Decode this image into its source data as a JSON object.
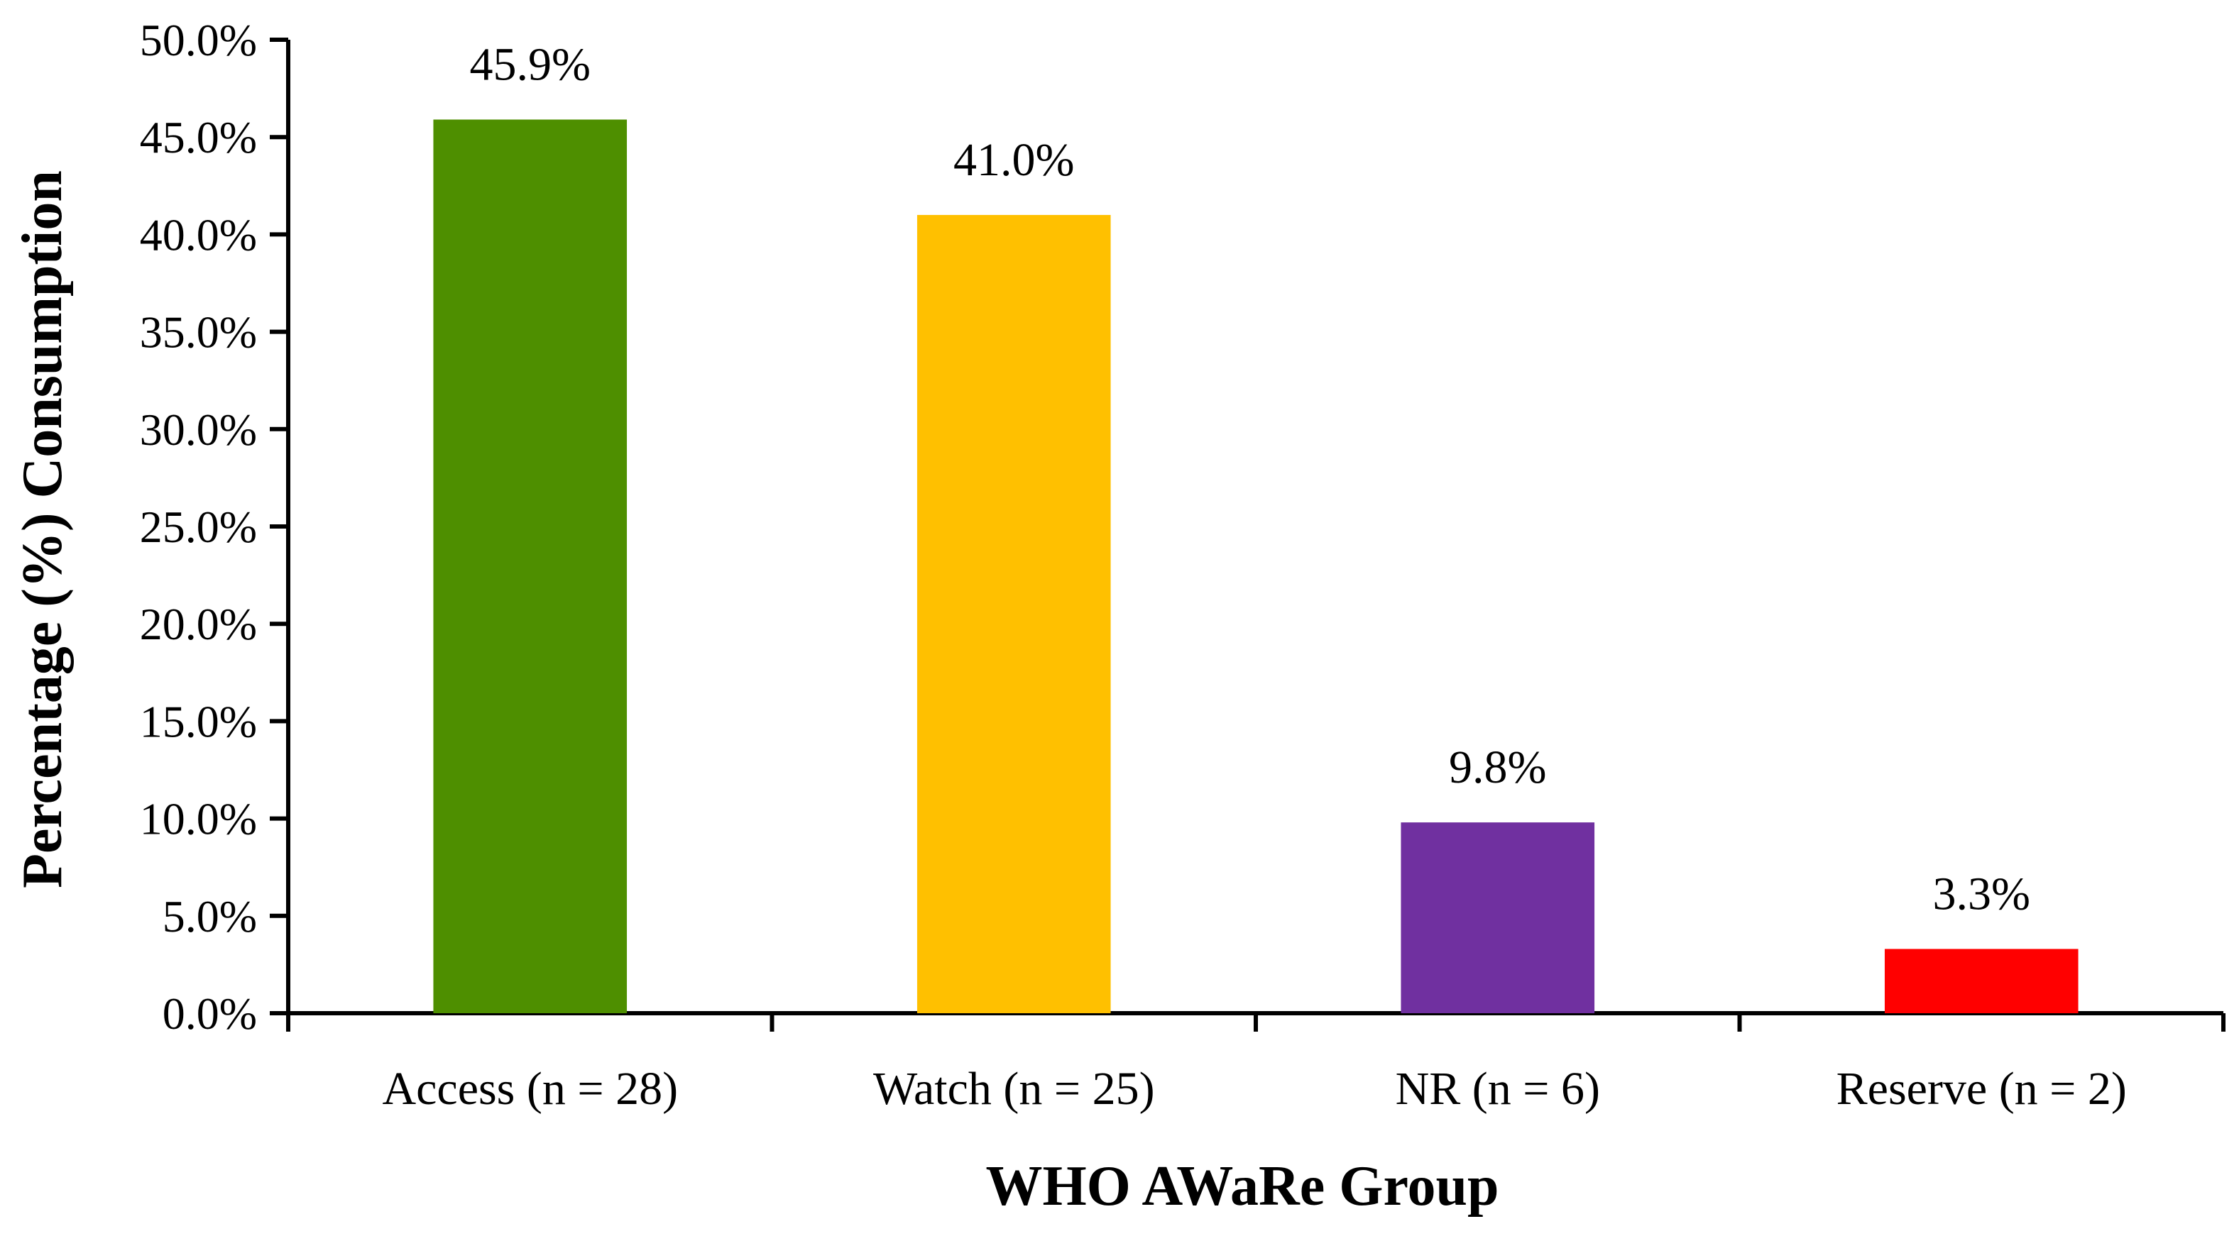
{
  "chart_data": {
    "type": "bar",
    "title": "",
    "xlabel": "WHO AWaRe Group",
    "ylabel": "Percentage (%) Consumption",
    "categories": [
      "Access (n = 28)",
      "Watch (n = 25)",
      "NR (n = 6)",
      "Reserve (n = 2)"
    ],
    "values": [
      45.9,
      41.0,
      9.8,
      3.3
    ],
    "data_labels": [
      "45.9%",
      "41.0%",
      "9.8%",
      "3.3%"
    ],
    "bar_colors": [
      "#4E8F00",
      "#FFC000",
      "#7030A0",
      "#FF0000"
    ],
    "ylim": [
      0,
      50
    ],
    "y_ticks": [
      0,
      5,
      10,
      15,
      20,
      25,
      30,
      35,
      40,
      45,
      50
    ],
    "y_tick_labels": [
      "0.0%",
      "5.0%",
      "10.0%",
      "15.0%",
      "20.0%",
      "25.0%",
      "30.0%",
      "35.0%",
      "40.0%",
      "45.0%",
      "50.0%"
    ],
    "grid": false,
    "legend": "none"
  }
}
